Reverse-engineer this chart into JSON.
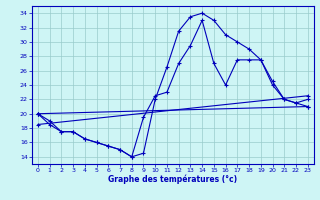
{
  "title": "Graphe des températures (°c)",
  "bg_color": "#cef5f5",
  "line_color": "#0000bb",
  "grid_color": "#99cccc",
  "ylim": [
    13,
    35
  ],
  "yticks": [
    14,
    16,
    18,
    20,
    22,
    24,
    26,
    28,
    30,
    32,
    34
  ],
  "xlim": [
    -0.5,
    23.5
  ],
  "xticks": [
    0,
    1,
    2,
    3,
    4,
    5,
    6,
    7,
    8,
    9,
    10,
    11,
    12,
    13,
    14,
    15,
    16,
    17,
    18,
    19,
    20,
    21,
    22,
    23
  ],
  "series": [
    {
      "x": [
        0,
        1,
        2,
        3,
        4,
        5,
        6,
        7,
        8,
        9,
        10,
        11,
        12,
        13,
        14,
        15,
        16,
        17,
        18,
        19,
        20,
        21,
        22,
        23
      ],
      "y": [
        20.0,
        19.0,
        17.5,
        17.5,
        16.5,
        16.0,
        15.5,
        15.0,
        14.0,
        14.5,
        22.0,
        26.5,
        31.5,
        33.5,
        34.0,
        33.0,
        31.0,
        30.0,
        29.0,
        27.5,
        24.0,
        22.0,
        21.5,
        21.0
      ]
    },
    {
      "x": [
        0,
        1,
        2,
        3,
        4,
        5,
        6,
        7,
        8,
        9,
        10,
        11,
        12,
        13,
        14,
        15,
        16,
        17,
        18,
        19,
        20,
        21,
        22,
        23
      ],
      "y": [
        20.0,
        18.5,
        17.5,
        17.5,
        16.5,
        16.0,
        15.5,
        15.0,
        14.0,
        19.5,
        22.5,
        23.0,
        27.0,
        29.5,
        33.0,
        27.0,
        24.0,
        27.5,
        27.5,
        27.5,
        24.5,
        22.0,
        21.5,
        22.0
      ]
    },
    {
      "x": [
        0,
        23
      ],
      "y": [
        18.5,
        22.5
      ]
    },
    {
      "x": [
        0,
        23
      ],
      "y": [
        20.0,
        21.0
      ]
    }
  ]
}
